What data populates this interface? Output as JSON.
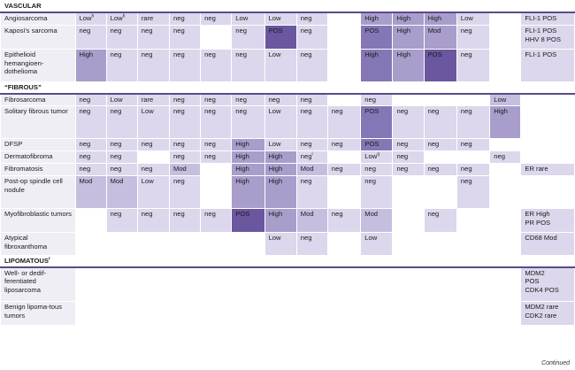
{
  "colors": {
    "none": "#ffffff",
    "L1": "#dcd7ec",
    "L2": "#c6bedf",
    "L3": "#a99dcc",
    "L4": "#8577b5",
    "L5": "#6a579f",
    "label_bg": "#efeef5"
  },
  "footer": "Continued",
  "rows": [
    {
      "section": "VASCULAR"
    },
    {
      "name": "Angiosarcoma",
      "h": 15,
      "cells": [
        [
          "Low",
          "h",
          "L1"
        ],
        [
          "Low",
          "h",
          "L1"
        ],
        [
          "rare",
          "",
          "L1"
        ],
        [
          "neg",
          "",
          "L1"
        ],
        [
          "neg",
          "",
          "L1"
        ],
        [
          "Low",
          "",
          "L1"
        ],
        [
          "Low",
          "",
          "L1"
        ],
        [
          "neg",
          "",
          "L1"
        ],
        [
          "",
          "",
          "none"
        ],
        [
          "High",
          "",
          "L3"
        ],
        [
          "High",
          "",
          "L3"
        ],
        [
          "High",
          "",
          "L3"
        ],
        [
          "Low",
          "",
          "L1"
        ],
        [
          "",
          "",
          "none"
        ],
        [
          "FLI-1 POS",
          "",
          "L1"
        ]
      ]
    },
    {
      "name": "Kaposi's sarcoma",
      "h": 27,
      "cells": [
        [
          "neg",
          "",
          "L1"
        ],
        [
          "neg",
          "",
          "L1"
        ],
        [
          "neg",
          "",
          "L1"
        ],
        [
          "neg",
          "",
          "L1"
        ],
        [
          "",
          "",
          "none"
        ],
        [
          "neg",
          "",
          "L1"
        ],
        [
          "POS",
          "",
          "L5"
        ],
        [
          "neg",
          "",
          "L1"
        ],
        [
          "",
          "",
          "none"
        ],
        [
          "POS",
          "",
          "L4"
        ],
        [
          "High",
          "",
          "L3"
        ],
        [
          "Mod",
          "",
          "L3"
        ],
        [
          "neg",
          "",
          "L1"
        ],
        [
          "",
          "",
          "none"
        ],
        [
          "FLI-1 POS\nHHV 8 POS",
          "",
          "L1"
        ]
      ]
    },
    {
      "name": "Epithelioid hemangioen-dothelioma",
      "h": 37,
      "cells": [
        [
          "High",
          "",
          "L3"
        ],
        [
          "neg",
          "",
          "L1"
        ],
        [
          "neg",
          "",
          "L1"
        ],
        [
          "neg",
          "",
          "L1"
        ],
        [
          "neg",
          "",
          "L1"
        ],
        [
          "neg",
          "",
          "L1"
        ],
        [
          "Low",
          "",
          "L1"
        ],
        [
          "neg",
          "",
          "L1"
        ],
        [
          "",
          "",
          "none"
        ],
        [
          "High",
          "",
          "L4"
        ],
        [
          "High",
          "",
          "L3"
        ],
        [
          "POS",
          "",
          "L5"
        ],
        [
          "neg",
          "",
          "L1"
        ],
        [
          "",
          "",
          "none"
        ],
        [
          "FLI-1 POS",
          "",
          "L1"
        ]
      ]
    },
    {
      "section": "“FIBROUS”"
    },
    {
      "name": "Fibrosarcoma",
      "h": 14,
      "cells": [
        [
          "neg",
          "",
          "L1"
        ],
        [
          "Low",
          "",
          "L1"
        ],
        [
          "rare",
          "",
          "L1"
        ],
        [
          "neg",
          "",
          "L1"
        ],
        [
          "neg",
          "",
          "L1"
        ],
        [
          "neg",
          "",
          "L1"
        ],
        [
          "neg",
          "",
          "L1"
        ],
        [
          "neg",
          "",
          "L1"
        ],
        [
          "",
          "",
          "none"
        ],
        [
          "neg",
          "",
          "L1"
        ],
        [
          "",
          "",
          "none"
        ],
        [
          "",
          "",
          "none"
        ],
        [
          "",
          "",
          "none"
        ],
        [
          "Low",
          "",
          "L2"
        ],
        [
          "",
          "",
          "none"
        ]
      ]
    },
    {
      "name": "Solitary fibrous tumor",
      "h": 37,
      "cells": [
        [
          "neg",
          "",
          "L1"
        ],
        [
          "neg",
          "",
          "L1"
        ],
        [
          "Low",
          "",
          "L1"
        ],
        [
          "neg",
          "",
          "L1"
        ],
        [
          "neg",
          "",
          "L1"
        ],
        [
          "neg",
          "",
          "L1"
        ],
        [
          "Low",
          "",
          "L1"
        ],
        [
          "neg",
          "",
          "L1"
        ],
        [
          "neg",
          "",
          "L1"
        ],
        [
          "POS",
          "",
          "L4"
        ],
        [
          "neg",
          "",
          "L1"
        ],
        [
          "neg",
          "",
          "L1"
        ],
        [
          "neg",
          "",
          "L1"
        ],
        [
          "High",
          "",
          "L3"
        ],
        [
          "",
          "",
          "none"
        ]
      ]
    },
    {
      "name": "DFSP",
      "h": 14,
      "cells": [
        [
          "neg",
          "",
          "L1"
        ],
        [
          "neg",
          "",
          "L1"
        ],
        [
          "neg",
          "",
          "L1"
        ],
        [
          "neg",
          "",
          "L1"
        ],
        [
          "neg",
          "",
          "L1"
        ],
        [
          "High",
          "",
          "L3"
        ],
        [
          "Low",
          "",
          "L1"
        ],
        [
          "neg",
          "",
          "L1"
        ],
        [
          "neg",
          "",
          "L1"
        ],
        [
          "POS",
          "",
          "L4"
        ],
        [
          "neg",
          "",
          "L1"
        ],
        [
          "neg",
          "",
          "L1"
        ],
        [
          "neg",
          "",
          "L1"
        ],
        [
          "",
          "",
          "none"
        ],
        [
          "",
          "",
          "none"
        ]
      ]
    },
    {
      "name": "Dermatofibroma",
      "h": 14,
      "cells": [
        [
          "neg",
          "",
          "L1"
        ],
        [
          "neg",
          "",
          "L1"
        ],
        [
          "",
          "",
          "none"
        ],
        [
          "neg",
          "",
          "L1"
        ],
        [
          "neg",
          "",
          "L1"
        ],
        [
          "High",
          "",
          "L3"
        ],
        [
          "High",
          "",
          "L3"
        ],
        [
          "neg",
          "i",
          "L1"
        ],
        [
          "",
          "",
          "none"
        ],
        [
          "Low",
          "q",
          "L1"
        ],
        [
          "neg",
          "",
          "L1"
        ],
        [
          "",
          "",
          "none"
        ],
        [
          "",
          "",
          "none"
        ],
        [
          "neg",
          "",
          "L1"
        ],
        [
          "",
          "",
          "none"
        ]
      ]
    },
    {
      "name": "Fibromatosis",
      "h": 14,
      "cells": [
        [
          "neg",
          "",
          "L1"
        ],
        [
          "neg",
          "",
          "L1"
        ],
        [
          "neg",
          "",
          "L1"
        ],
        [
          "Mod",
          "",
          "L2"
        ],
        [
          "",
          "",
          "none"
        ],
        [
          "High",
          "",
          "L3"
        ],
        [
          "High",
          "",
          "L3"
        ],
        [
          "Mod",
          "",
          "L2"
        ],
        [
          "neg",
          "",
          "L1"
        ],
        [
          "neg",
          "",
          "L1"
        ],
        [
          "neg",
          "",
          "L1"
        ],
        [
          "neg",
          "",
          "L1"
        ],
        [
          "neg",
          "",
          "L1"
        ],
        [
          "",
          "",
          "none"
        ],
        [
          "ER rare",
          "",
          "L1"
        ]
      ]
    },
    {
      "name": "Post-op spindle cell nodule",
      "h": 37,
      "cells": [
        [
          "Mod",
          "",
          "L2"
        ],
        [
          "Mod",
          "",
          "L2"
        ],
        [
          "Low",
          "",
          "L1"
        ],
        [
          "neg",
          "",
          "L1"
        ],
        [
          "",
          "",
          "none"
        ],
        [
          "High",
          "",
          "L3"
        ],
        [
          "High",
          "",
          "L3"
        ],
        [
          "neg",
          "",
          "L1"
        ],
        [
          "",
          "",
          "none"
        ],
        [
          "neg",
          "",
          "L1"
        ],
        [
          "",
          "",
          "none"
        ],
        [
          "",
          "",
          "none"
        ],
        [
          "neg",
          "",
          "L1"
        ],
        [
          "",
          "",
          "none"
        ],
        [
          "",
          "",
          "none"
        ]
      ]
    },
    {
      "name": "Myofibroblastic tumors",
      "h": 27,
      "cells": [
        [
          "",
          "",
          "none"
        ],
        [
          "neg",
          "",
          "L1"
        ],
        [
          "neg",
          "",
          "L1"
        ],
        [
          "neg",
          "",
          "L1"
        ],
        [
          "neg",
          "",
          "L1"
        ],
        [
          "POS",
          "",
          "L5"
        ],
        [
          "High",
          "",
          "L3"
        ],
        [
          "Mod",
          "",
          "L2"
        ],
        [
          "neg",
          "",
          "L1"
        ],
        [
          "Mod",
          "",
          "L2"
        ],
        [
          "",
          "",
          "none"
        ],
        [
          "neg",
          "",
          "L1"
        ],
        [
          "",
          "",
          "none"
        ],
        [
          "",
          "",
          "none"
        ],
        [
          "ER High\nPR POS",
          "",
          "L1"
        ]
      ]
    },
    {
      "name": "Atypical fibroxanthoma",
      "h": 26,
      "cells": [
        [
          "",
          "",
          "none"
        ],
        [
          "",
          "",
          "none"
        ],
        [
          "",
          "",
          "none"
        ],
        [
          "",
          "",
          "none"
        ],
        [
          "",
          "",
          "none"
        ],
        [
          "",
          "",
          "none"
        ],
        [
          "Low",
          "",
          "L1"
        ],
        [
          "neg",
          "",
          "L1"
        ],
        [
          "",
          "",
          "none"
        ],
        [
          "Low",
          "",
          "L1"
        ],
        [
          "",
          "",
          "none"
        ],
        [
          "",
          "",
          "none"
        ],
        [
          "",
          "",
          "none"
        ],
        [
          "",
          "",
          "none"
        ],
        [
          "CD68 Mod",
          "",
          "L1"
        ]
      ]
    },
    {
      "section": "LIPOMATOUS",
      "sup": "r"
    },
    {
      "name": "Well- or dedif-ferentiated liposarcoma",
      "h": 39,
      "cells": [
        [
          "",
          "",
          "none"
        ],
        [
          "",
          "",
          "none"
        ],
        [
          "",
          "",
          "none"
        ],
        [
          "",
          "",
          "none"
        ],
        [
          "",
          "",
          "none"
        ],
        [
          "",
          "",
          "none"
        ],
        [
          "",
          "",
          "none"
        ],
        [
          "",
          "",
          "none"
        ],
        [
          "",
          "",
          "none"
        ],
        [
          "",
          "",
          "none"
        ],
        [
          "",
          "",
          "none"
        ],
        [
          "",
          "",
          "none"
        ],
        [
          "",
          "",
          "none"
        ],
        [
          "",
          "",
          "none"
        ],
        [
          "MDM2\nPOS\nCDK4 POS",
          "",
          "L1"
        ]
      ]
    },
    {
      "name": "Benign lipoma-tous tumors",
      "h": 27,
      "cells": [
        [
          "",
          "",
          "none"
        ],
        [
          "",
          "",
          "none"
        ],
        [
          "",
          "",
          "none"
        ],
        [
          "",
          "",
          "none"
        ],
        [
          "",
          "",
          "none"
        ],
        [
          "",
          "",
          "none"
        ],
        [
          "",
          "",
          "none"
        ],
        [
          "",
          "",
          "none"
        ],
        [
          "",
          "",
          "none"
        ],
        [
          "",
          "",
          "none"
        ],
        [
          "",
          "",
          "none"
        ],
        [
          "",
          "",
          "none"
        ],
        [
          "",
          "",
          "none"
        ],
        [
          "",
          "",
          "none"
        ],
        [
          "MDM2 rare\nCDK2 rare",
          "",
          "L1"
        ]
      ]
    }
  ]
}
